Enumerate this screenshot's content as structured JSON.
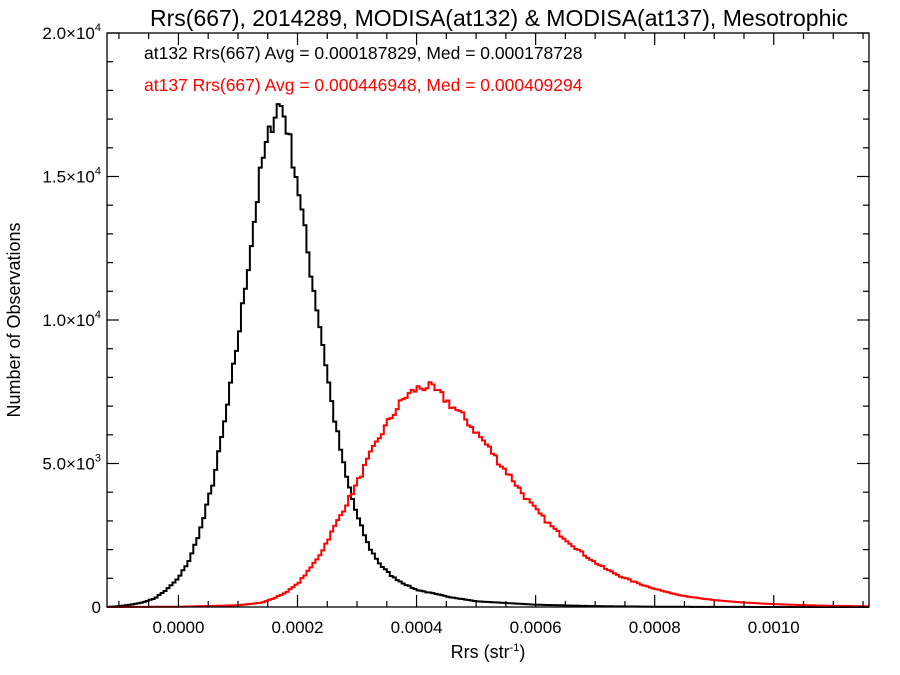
{
  "chart_data": {
    "type": "histogram",
    "title": "Rrs(667), 2014289, MODISA(at132) & MODISA(at137), Mesotrophic",
    "xlabel": "Rrs (str",
    "xlabel_sup": "-1",
    "xlabel_end": ")",
    "ylabel": "Number of Observations",
    "xlim": [
      -0.00012,
      0.00116
    ],
    "ylim": [
      0,
      20000
    ],
    "x_ticks": [
      {
        "value": 0.0,
        "label": "0.0000"
      },
      {
        "value": 0.0002,
        "label": "0.0002"
      },
      {
        "value": 0.0004,
        "label": "0.0004"
      },
      {
        "value": 0.0006,
        "label": "0.0006"
      },
      {
        "value": 0.0008,
        "label": "0.0008"
      },
      {
        "value": 0.001,
        "label": "0.0010"
      }
    ],
    "y_ticks": [
      {
        "value": 0,
        "mant": "0",
        "exp": ""
      },
      {
        "value": 5000,
        "mant": "5.0×10",
        "exp": "3"
      },
      {
        "value": 10000,
        "mant": "1.0×10",
        "exp": "4"
      },
      {
        "value": 15000,
        "mant": "1.5×10",
        "exp": "4"
      },
      {
        "value": 20000,
        "mant": "2.0×10",
        "exp": "4"
      }
    ],
    "annotations": [
      {
        "text": "at132 Rrs(667) Avg = 0.000187829, Med = 0.000178728",
        "color": "#000000"
      },
      {
        "text": "at137 Rrs(667) Avg = 0.000446948, Med = 0.000409294",
        "color": "#ff0000"
      }
    ],
    "series": [
      {
        "color": "#000000",
        "points": [
          [
            -0.00012,
            0
          ],
          [
            -0.0001,
            30
          ],
          [
            -8e-05,
            80
          ],
          [
            -6e-05,
            160
          ],
          [
            -4e-05,
            300
          ],
          [
            -2e-05,
            600
          ],
          [
            0.0,
            1000
          ],
          [
            2e-05,
            1700
          ],
          [
            4e-05,
            2900
          ],
          [
            6e-05,
            4500
          ],
          [
            8e-05,
            6700
          ],
          [
            0.0001,
            9300
          ],
          [
            0.00012,
            12300
          ],
          [
            0.00014,
            15400
          ],
          [
            0.00016,
            17100
          ],
          [
            0.00017,
            17600
          ],
          [
            0.00018,
            17000
          ],
          [
            0.0002,
            14800
          ],
          [
            0.00022,
            12000
          ],
          [
            0.00024,
            9500
          ],
          [
            0.00026,
            6800
          ],
          [
            0.00028,
            4700
          ],
          [
            0.0003,
            3200
          ],
          [
            0.00032,
            2100
          ],
          [
            0.00034,
            1450
          ],
          [
            0.00036,
            1050
          ],
          [
            0.00038,
            800
          ],
          [
            0.0004,
            600
          ],
          [
            0.00045,
            370
          ],
          [
            0.0005,
            200
          ],
          [
            0.0006,
            80
          ],
          [
            0.0007,
            30
          ],
          [
            0.0008,
            10
          ],
          [
            0.0009,
            4
          ],
          [
            0.001,
            1
          ],
          [
            0.00116,
            0
          ]
        ]
      },
      {
        "color": "#ff0000",
        "points": [
          [
            -0.00012,
            0
          ],
          [
            0.0,
            10
          ],
          [
            0.0001,
            60
          ],
          [
            0.00014,
            150
          ],
          [
            0.00016,
            300
          ],
          [
            0.00018,
            500
          ],
          [
            0.0002,
            800
          ],
          [
            0.00022,
            1300
          ],
          [
            0.00024,
            1900
          ],
          [
            0.00026,
            2700
          ],
          [
            0.00028,
            3500
          ],
          [
            0.0003,
            4300
          ],
          [
            0.00032,
            5200
          ],
          [
            0.00034,
            6000
          ],
          [
            0.00036,
            6700
          ],
          [
            0.00038,
            7300
          ],
          [
            0.0004,
            7600
          ],
          [
            0.00042,
            7700
          ],
          [
            0.00044,
            7400
          ],
          [
            0.00046,
            7000
          ],
          [
            0.00048,
            6600
          ],
          [
            0.0005,
            6100
          ],
          [
            0.00052,
            5600
          ],
          [
            0.00054,
            5000
          ],
          [
            0.00056,
            4500
          ],
          [
            0.00058,
            3900
          ],
          [
            0.0006,
            3400
          ],
          [
            0.00062,
            2950
          ],
          [
            0.00064,
            2550
          ],
          [
            0.00066,
            2200
          ],
          [
            0.00068,
            1850
          ],
          [
            0.0007,
            1550
          ],
          [
            0.00072,
            1300
          ],
          [
            0.00074,
            1100
          ],
          [
            0.00076,
            920
          ],
          [
            0.00078,
            770
          ],
          [
            0.0008,
            640
          ],
          [
            0.00082,
            520
          ],
          [
            0.00084,
            430
          ],
          [
            0.00086,
            350
          ],
          [
            0.00088,
            290
          ],
          [
            0.0009,
            240
          ],
          [
            0.00094,
            170
          ],
          [
            0.00098,
            120
          ],
          [
            0.00102,
            85
          ],
          [
            0.00106,
            60
          ],
          [
            0.0011,
            40
          ],
          [
            0.00116,
            25
          ]
        ]
      }
    ]
  }
}
